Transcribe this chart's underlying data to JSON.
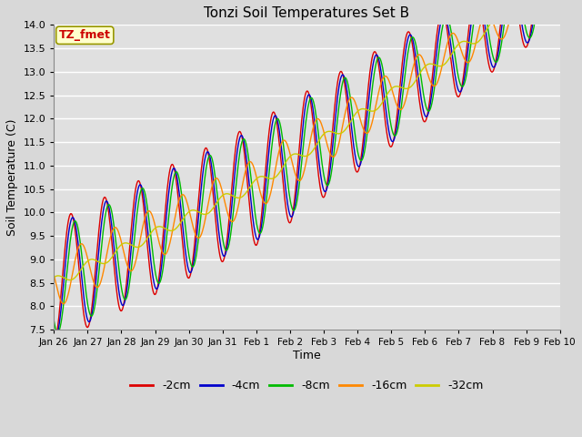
{
  "title": "Tonzi Soil Temperatures Set B",
  "xlabel": "Time",
  "ylabel": "Soil Temperature (C)",
  "ylim": [
    7.5,
    14.0
  ],
  "annotation": "TZ_fmet",
  "annotation_color": "#cc0000",
  "annotation_bg": "#ffffcc",
  "annotation_border": "#999900",
  "bg_color": "#e8e8e8",
  "series_colors": [
    "#dd0000",
    "#0000cc",
    "#00bb00",
    "#ff8800",
    "#cccc00"
  ],
  "series_names": [
    "-2cm",
    "-4cm",
    "-8cm",
    "-16cm",
    "-32cm"
  ],
  "xtick_labels": [
    "Jan 26",
    "Jan 27",
    "Jan 28",
    "Jan 29",
    "Jan 30",
    "Jan 31",
    "Feb 1",
    "Feb 2",
    "Feb 3",
    "Feb 4",
    "Feb 5",
    "Feb 6",
    "Feb 7",
    "Feb 8",
    "Feb 9",
    "Feb 10"
  ],
  "yticks": [
    7.5,
    8.0,
    8.5,
    9.0,
    9.5,
    10.0,
    10.5,
    11.0,
    11.5,
    12.0,
    12.5,
    13.0,
    13.5,
    14.0
  ],
  "legend_colors": [
    "#dd0000",
    "#0000cc",
    "#00bb00",
    "#ff8800",
    "#cccc00"
  ],
  "legend_labels": [
    "-2cm",
    "-4cm",
    "-8cm",
    "-16cm",
    "-32cm"
  ]
}
